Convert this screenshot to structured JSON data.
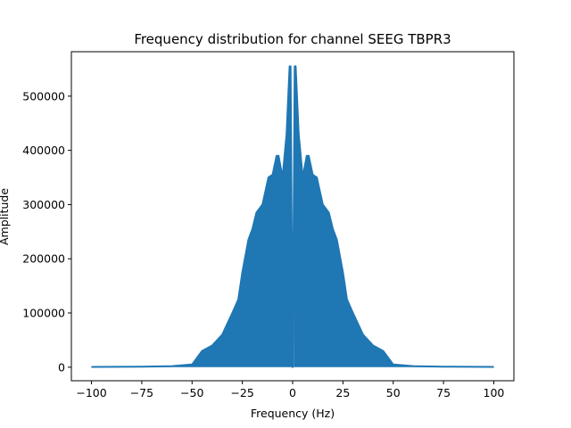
{
  "chart_data": {
    "type": "line",
    "title": "Frequency distribution for channel SEEG TBPR3",
    "xlabel": "Frequency (Hz)",
    "ylabel": "Amplitude",
    "xlim": [
      -110,
      110
    ],
    "ylim": [
      -25000,
      582000
    ],
    "x_ticks": [
      -100,
      -75,
      -50,
      -25,
      0,
      25,
      50,
      75,
      100
    ],
    "x_tick_labels": [
      "−100",
      "−75",
      "−50",
      "−25",
      "0",
      "25",
      "50",
      "75",
      "100"
    ],
    "y_ticks": [
      0,
      100000,
      200000,
      300000,
      400000,
      500000
    ],
    "y_tick_labels": [
      "0",
      "100000",
      "200000",
      "300000",
      "400000",
      "500000"
    ],
    "grid": false,
    "legend": null,
    "color": "#1f77b4",
    "series": [
      {
        "x": [
          -100,
          -75,
          -60,
          -50,
          -45,
          -40,
          -35,
          -30,
          -27,
          -25,
          -22,
          -20,
          -18,
          -15,
          -12,
          -10,
          -8,
          -7,
          -5,
          -3,
          -1.5,
          -1,
          0,
          1,
          1.5,
          3,
          5,
          7,
          8,
          10,
          12,
          15,
          18,
          20,
          22,
          25,
          27,
          30,
          35,
          40,
          45,
          50,
          60,
          75,
          100
        ],
        "y": [
          500,
          1000,
          2000,
          5000,
          30000,
          40000,
          60000,
          100000,
          125000,
          175000,
          235000,
          255000,
          285000,
          300000,
          350000,
          355000,
          390000,
          390000,
          350000,
          430000,
          555000,
          555000,
          0,
          555000,
          555000,
          430000,
          350000,
          390000,
          390000,
          355000,
          350000,
          300000,
          285000,
          255000,
          235000,
          175000,
          125000,
          100000,
          60000,
          40000,
          30000,
          5000,
          2000,
          1000,
          500
        ]
      }
    ]
  }
}
